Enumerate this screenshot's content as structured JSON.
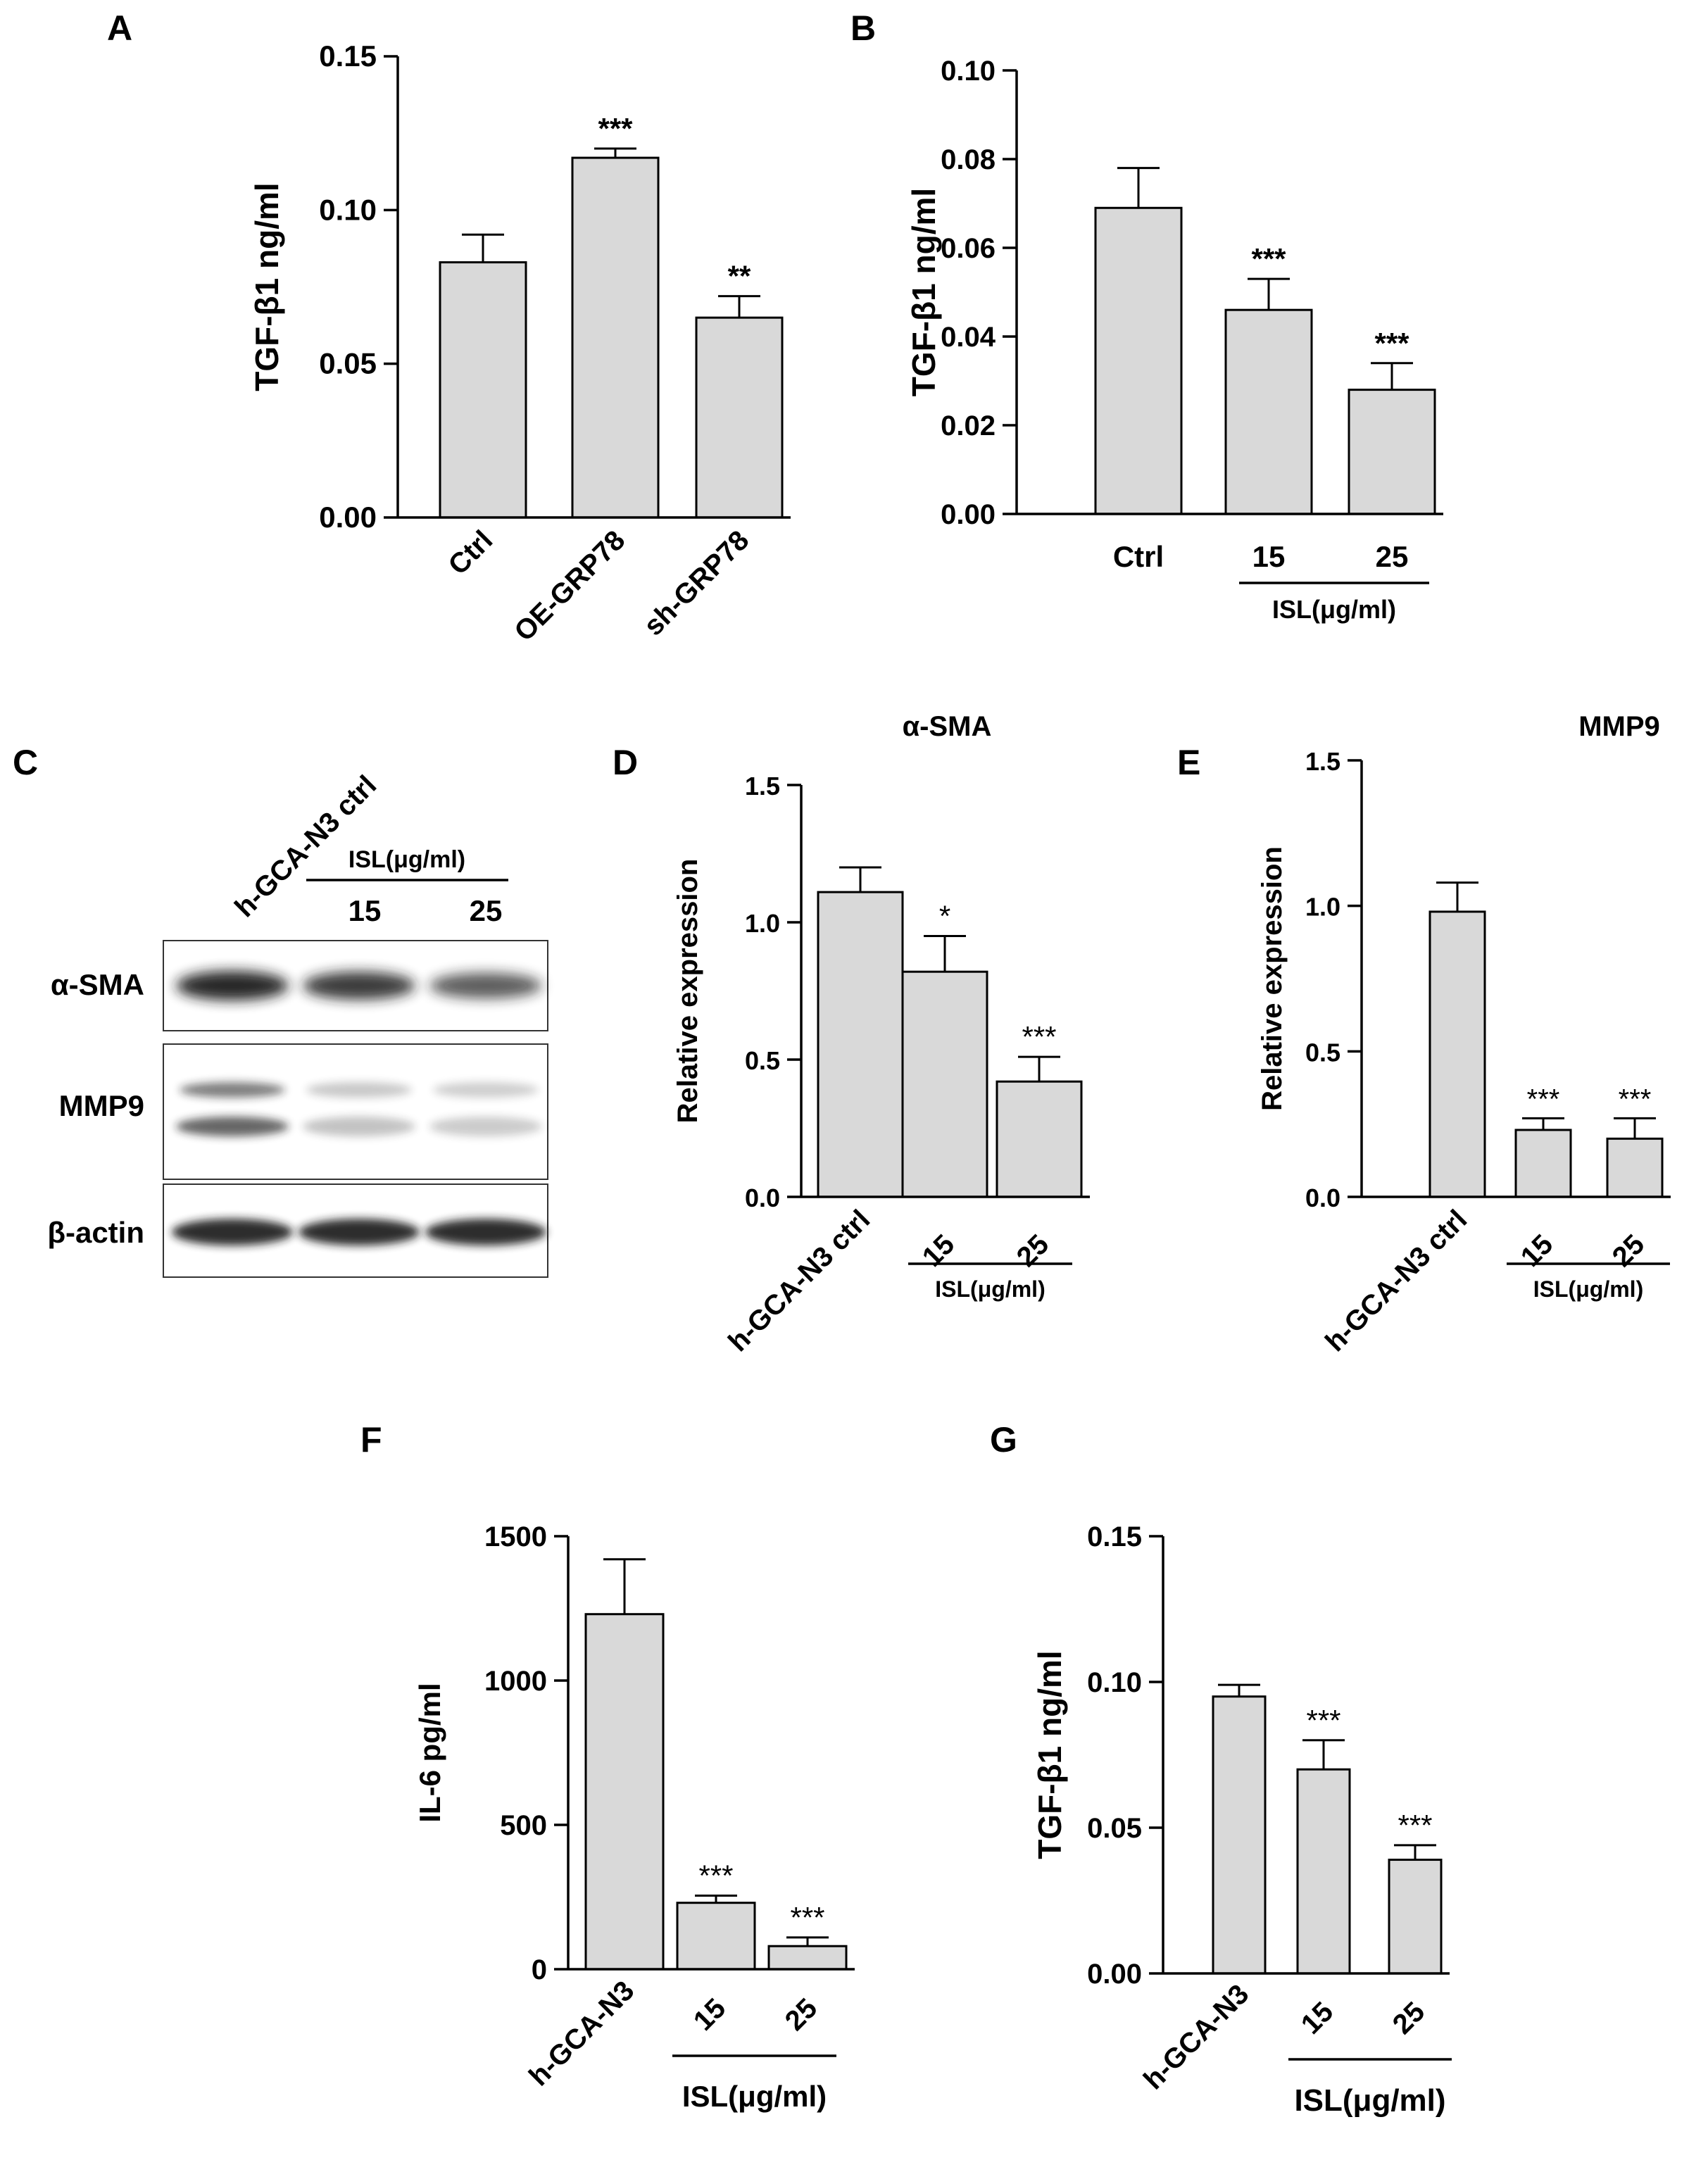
{
  "panel_letters": [
    "A",
    "B",
    "C",
    "D",
    "E",
    "F",
    "G"
  ],
  "colors": {
    "bar_fill": "#d9d9d9",
    "bar_stroke": "#000000",
    "blot_band": "#1a1a1a"
  },
  "chart_data": [
    {
      "panel": "A",
      "type": "bar",
      "title": "",
      "ylabel": "TGF-β1 ng/ml",
      "ylim": [
        0,
        0.15
      ],
      "yticks": [
        "0.00",
        "0.05",
        "0.10",
        "0.15"
      ],
      "categories": [
        "Ctrl",
        "OE-GRP78",
        "sh-GRP78"
      ],
      "values": [
        0.083,
        0.117,
        0.065
      ],
      "errors": [
        0.009,
        0.003,
        0.007
      ],
      "significance": [
        "",
        "***",
        "**"
      ],
      "group_label": ""
    },
    {
      "panel": "B",
      "type": "bar",
      "title": "",
      "ylabel": "TGF-β1 ng/ml",
      "ylim": [
        0,
        0.1
      ],
      "yticks": [
        "0.00",
        "0.02",
        "0.04",
        "0.06",
        "0.08",
        "0.10"
      ],
      "categories": [
        "Ctrl",
        "15",
        "25"
      ],
      "values": [
        0.069,
        0.046,
        0.028
      ],
      "errors": [
        0.009,
        0.007,
        0.006
      ],
      "significance": [
        "",
        "***",
        "***"
      ],
      "group_label": "ISL(μg/ml)"
    },
    {
      "panel": "D",
      "type": "bar",
      "title": "α-SMA",
      "ylabel": "Relative expression",
      "ylim": [
        0,
        1.5
      ],
      "yticks": [
        "0.0",
        "0.5",
        "1.0",
        "1.5"
      ],
      "categories": [
        "h-GCA-N3 ctrl",
        "15",
        "25"
      ],
      "values": [
        1.11,
        0.82,
        0.42
      ],
      "errors": [
        0.09,
        0.13,
        0.09
      ],
      "significance": [
        "",
        "*",
        "***"
      ],
      "group_label": "ISL(μg/ml)"
    },
    {
      "panel": "E",
      "type": "bar",
      "title": "MMP9",
      "ylabel": "Relative expression",
      "ylim": [
        0,
        1.5
      ],
      "yticks": [
        "0.0",
        "0.5",
        "1.0",
        "1.5"
      ],
      "categories": [
        "h-GCA-N3 ctrl",
        "15",
        "25"
      ],
      "values": [
        0.98,
        0.23,
        0.2
      ],
      "errors": [
        0.1,
        0.04,
        0.07
      ],
      "significance": [
        "",
        "***",
        "***"
      ],
      "group_label": "ISL(μg/ml)"
    },
    {
      "panel": "F",
      "type": "bar",
      "title": "",
      "ylabel": "IL-6 pg/ml",
      "ylim": [
        0,
        1500
      ],
      "yticks": [
        "0",
        "500",
        "1000",
        "1500"
      ],
      "categories": [
        "h-GCA-N3",
        "15",
        "25"
      ],
      "values": [
        1230,
        230,
        80
      ],
      "errors": [
        190,
        25,
        30
      ],
      "significance": [
        "",
        "***",
        "***"
      ],
      "group_label": "ISL(μg/ml)"
    },
    {
      "panel": "G",
      "type": "bar",
      "title": "",
      "ylabel": "TGF-β1 ng/ml",
      "ylim": [
        0,
        0.15
      ],
      "yticks": [
        "0.00",
        "0.05",
        "0.10",
        "0.15"
      ],
      "categories": [
        "h-GCA-N3",
        "15",
        "25"
      ],
      "values": [
        0.095,
        0.07,
        0.039
      ],
      "errors": [
        0.004,
        0.01,
        0.005
      ],
      "significance": [
        "",
        "***",
        "***"
      ],
      "group_label": "ISL(μg/ml)"
    }
  ],
  "western_blot": {
    "lanes": [
      "h-GCA-N3 ctrl",
      "15",
      "25"
    ],
    "group_label": "ISL(μg/ml)",
    "rows": [
      {
        "name": "α-SMA",
        "band_intensity": [
          1.0,
          0.85,
          0.6
        ]
      },
      {
        "name": "MMP9",
        "band_intensity": [
          0.7,
          0.15,
          0.1
        ]
      },
      {
        "name": "β-actin",
        "band_intensity": [
          1.0,
          1.0,
          1.0
        ]
      }
    ]
  }
}
